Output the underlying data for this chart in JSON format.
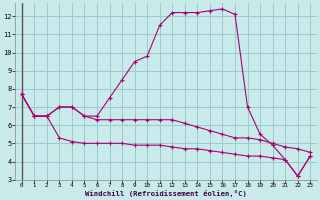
{
  "xlabel": "Windchill (Refroidissement éolien,°C)",
  "background_color": "#c8eaea",
  "grid_color": "#99cccc",
  "line_color": "#aa0077",
  "xlim": [
    -0.5,
    23.5
  ],
  "ylim": [
    3,
    12.7
  ],
  "xticks": [
    0,
    1,
    2,
    3,
    4,
    5,
    6,
    7,
    8,
    9,
    10,
    11,
    12,
    13,
    14,
    15,
    16,
    17,
    18,
    19,
    20,
    21,
    22,
    23
  ],
  "yticks": [
    3,
    4,
    5,
    6,
    7,
    8,
    9,
    10,
    11,
    12
  ],
  "series1_x": [
    0,
    1,
    2,
    3,
    4,
    5,
    6,
    7,
    8,
    9,
    10,
    11,
    12,
    13,
    14,
    15,
    16,
    17,
    18,
    19,
    20,
    21,
    22,
    23
  ],
  "series1_y": [
    7.7,
    6.5,
    6.5,
    7.0,
    7.0,
    6.5,
    6.5,
    7.5,
    8.5,
    9.5,
    9.8,
    11.5,
    12.2,
    12.2,
    12.2,
    12.3,
    12.4,
    12.1,
    7.0,
    5.5,
    4.9,
    4.1,
    3.2,
    4.3
  ],
  "series2_x": [
    0,
    1,
    2,
    3,
    4,
    5,
    6,
    7,
    8,
    9,
    10,
    11,
    12,
    13,
    14,
    15,
    16,
    17,
    18,
    19,
    20,
    21,
    22,
    23
  ],
  "series2_y": [
    7.7,
    6.5,
    6.5,
    7.0,
    7.0,
    6.5,
    6.3,
    6.3,
    6.3,
    6.3,
    6.3,
    6.3,
    6.3,
    6.1,
    5.9,
    5.7,
    5.5,
    5.3,
    5.3,
    5.2,
    5.0,
    4.8,
    4.7,
    4.5
  ],
  "series3_x": [
    0,
    1,
    2,
    3,
    4,
    5,
    6,
    7,
    8,
    9,
    10,
    11,
    12,
    13,
    14,
    15,
    16,
    17,
    18,
    19,
    20,
    21,
    22,
    23
  ],
  "series3_y": [
    7.7,
    6.5,
    6.5,
    5.3,
    5.1,
    5.0,
    5.0,
    5.0,
    5.0,
    4.9,
    4.9,
    4.9,
    4.8,
    4.7,
    4.7,
    4.6,
    4.5,
    4.4,
    4.3,
    4.3,
    4.2,
    4.1,
    3.2,
    4.3
  ],
  "left_line_color": "#555555"
}
